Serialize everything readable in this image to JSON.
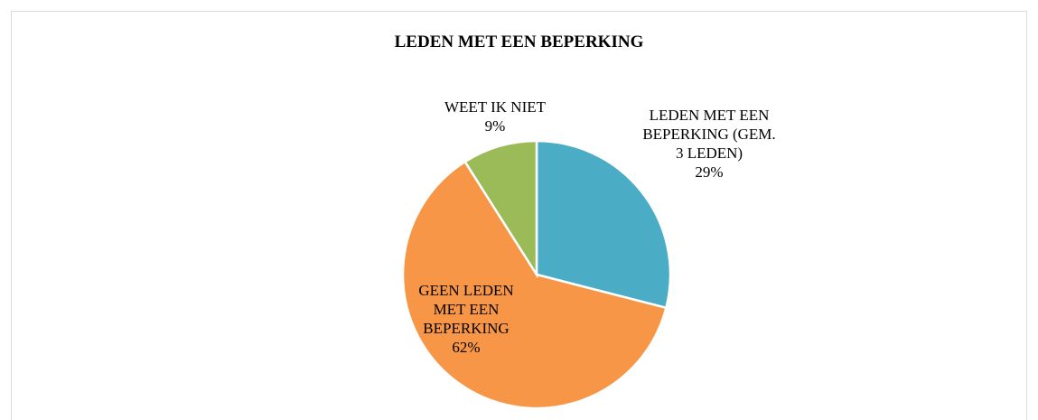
{
  "chart_data": {
    "type": "pie",
    "title": "LEDEN MET EEN BEPERKING",
    "categories": [
      "LEDEN MET EEN BEPERKING (GEM. 3 LEDEN)",
      "GEEN LEDEN MET EEN BEPERKING",
      "WEET IK NIET"
    ],
    "values": [
      29,
      62,
      9
    ],
    "value_labels": [
      "29%",
      "62%",
      "9%"
    ],
    "colors": [
      "#4bacc6",
      "#f79646",
      "#9bbb59"
    ]
  }
}
